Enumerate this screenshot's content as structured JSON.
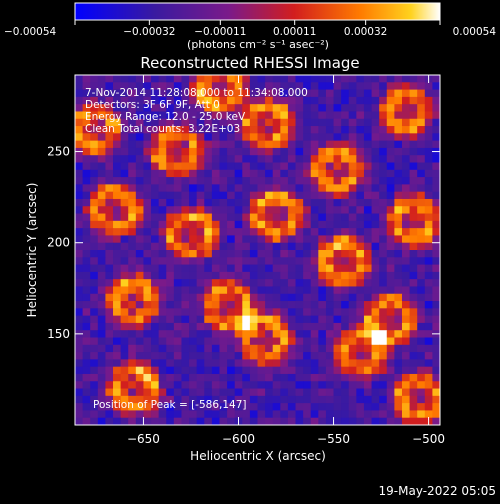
{
  "chart_data": {
    "type": "heatmap",
    "title": "Reconstructed RHESSI Image",
    "xlabel": "Heliocentric X (arcsec)",
    "ylabel": "Heliocentric Y (arcsec)",
    "xlim": [
      -686,
      -494
    ],
    "ylim": [
      100,
      292
    ],
    "xticks": [
      -650,
      -600,
      -550,
      -500
    ],
    "xtick_labels": [
      "−650",
      "−600",
      "−550",
      "−500"
    ],
    "yticks": [
      150,
      200,
      250
    ],
    "ytick_labels": [
      "150",
      "200",
      "250"
    ],
    "colorbar": {
      "range": [
        -0.00054,
        0.00054
      ],
      "ticks": [
        -0.00054,
        -0.00032,
        -0.00011,
        0.00011,
        0.00032,
        0.00054
      ],
      "tick_labels": [
        "−0.00054",
        "−0.00032",
        "−0.00011",
        "0.00011",
        "0.00032",
        "0.00054"
      ],
      "unit_label": "(photons cm⁻² s⁻¹ asec⁻²)",
      "colormap": "blue-purple-red-orange-yellow-white"
    },
    "annotations": [
      "7-Nov-2014 11:28:08.000 to 11:34:08.000",
      "Detectors: 3F 6F 9F, Att 0",
      "Energy Range: 12.0 - 25.0 keV",
      "Clean     Total counts: 3.22E+03"
    ],
    "peak_label": "Position of Peak = [-586,147]",
    "peak": {
      "x": -586,
      "y": 147
    },
    "hotspots": [
      {
        "x": -675,
        "y": 262
      },
      {
        "x": -665,
        "y": 218
      },
      {
        "x": -655,
        "y": 168
      },
      {
        "x": -632,
        "y": 250
      },
      {
        "x": -625,
        "y": 205
      },
      {
        "x": -605,
        "y": 165
      },
      {
        "x": -585,
        "y": 265
      },
      {
        "x": -580,
        "y": 215
      },
      {
        "x": -586,
        "y": 147
      },
      {
        "x": -548,
        "y": 240
      },
      {
        "x": -545,
        "y": 190
      },
      {
        "x": -535,
        "y": 140
      },
      {
        "x": -512,
        "y": 272
      },
      {
        "x": -508,
        "y": 212
      },
      {
        "x": -520,
        "y": 158
      },
      {
        "x": -505,
        "y": 115
      },
      {
        "x": -655,
        "y": 120
      },
      {
        "x": -610,
        "y": 285
      }
    ],
    "grid": false
  },
  "footer": {
    "timestamp": "19-May-2022 05:05"
  }
}
